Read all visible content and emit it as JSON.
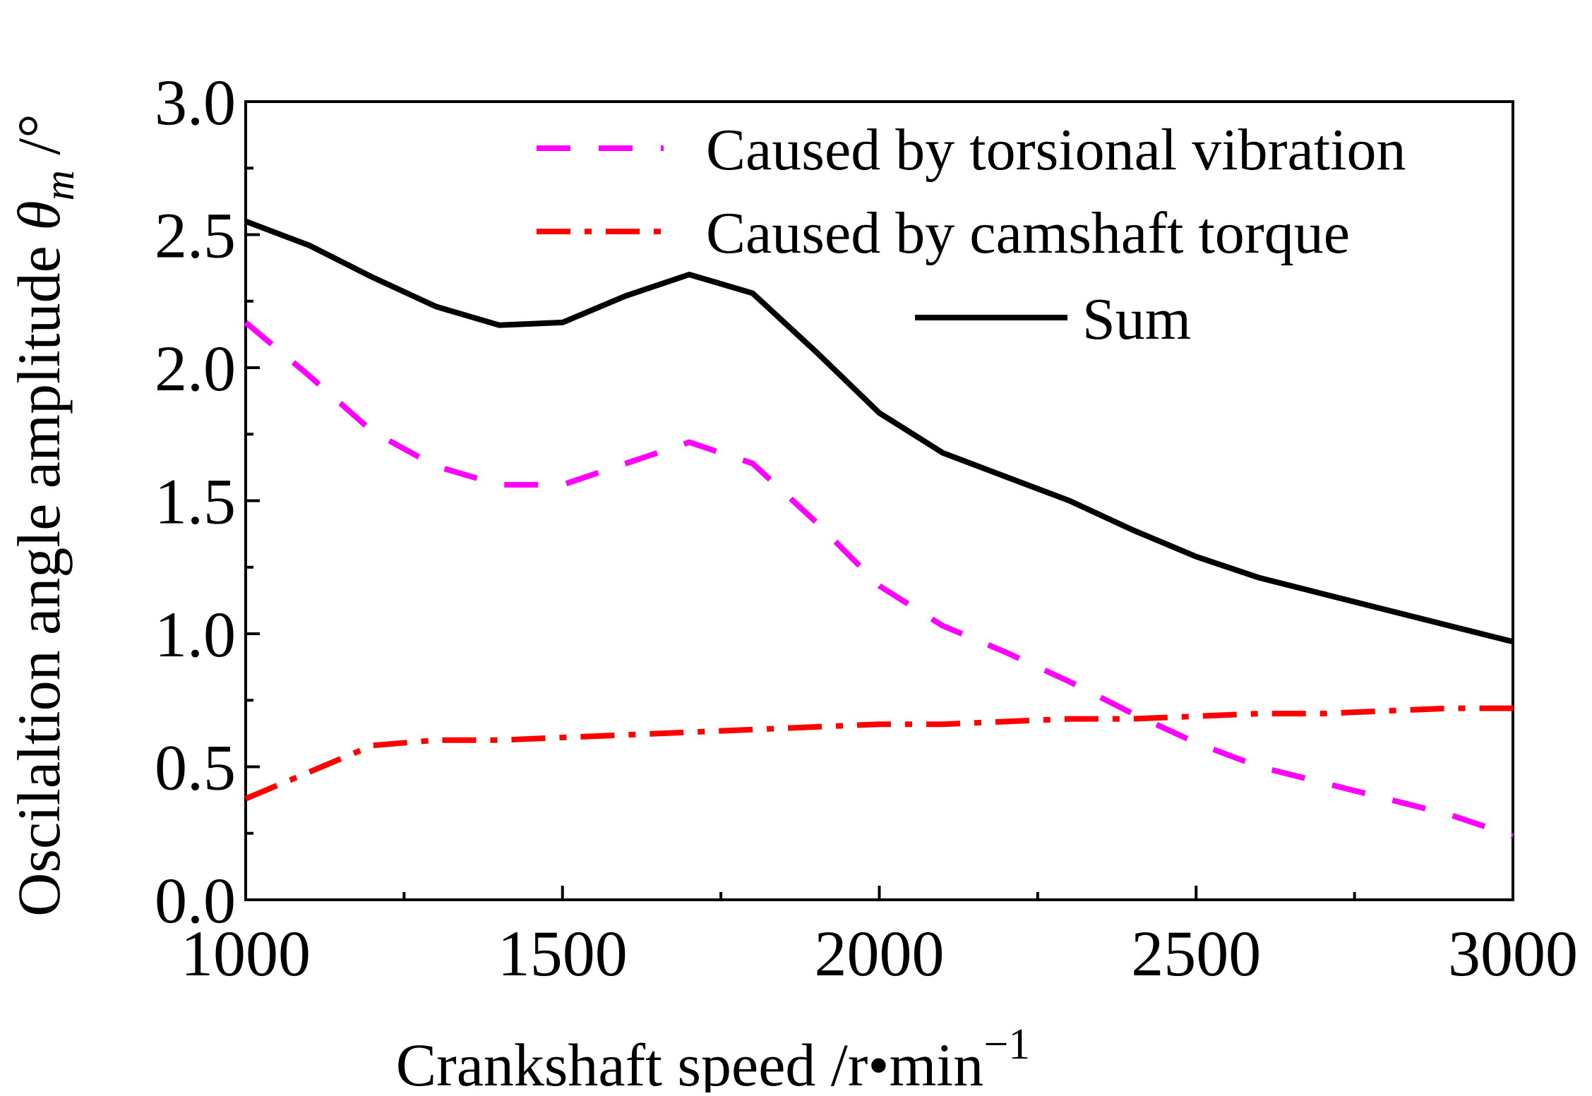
{
  "chart_data": {
    "type": "line",
    "title": "",
    "xlabel": "Crankshaft speed  /r•min",
    "xlabel_superscript": "−1",
    "ylabel": "Oscilaltion angle amplitude",
    "ylabel_symbol": "θ",
    "ylabel_subscript": "m",
    "ylabel_unit": "/°",
    "xlim": [
      1000,
      3000
    ],
    "ylim": [
      0.0,
      3.0
    ],
    "x_major_ticks": [
      1000,
      1500,
      2000,
      2500,
      3000
    ],
    "x_tick_labels": [
      "1000",
      "1500",
      "2000",
      "2500",
      "3000"
    ],
    "x_minor_step": 250,
    "y_major_ticks": [
      0.0,
      0.5,
      1.0,
      1.5,
      2.0,
      2.5,
      3.0
    ],
    "y_tick_labels": [
      "0.0",
      "0.5",
      "1.0",
      "1.5",
      "2.0",
      "2.5",
      "3.0"
    ],
    "y_minor_step": 0.25,
    "grid": false,
    "legend_position": "top-right",
    "x": [
      1000,
      1100,
      1200,
      1300,
      1400,
      1500,
      1600,
      1700,
      1800,
      1900,
      2000,
      2100,
      2200,
      2300,
      2400,
      2500,
      2600,
      2700,
      2800,
      2900,
      3000
    ],
    "series": [
      {
        "name": "Caused by torsional vibration",
        "color": "#ff00ff",
        "style": "dashed",
        "values": [
          2.17,
          1.97,
          1.76,
          1.63,
          1.56,
          1.56,
          1.64,
          1.72,
          1.64,
          1.42,
          1.18,
          1.03,
          0.93,
          0.82,
          0.7,
          0.59,
          0.5,
          0.44,
          0.38,
          0.32,
          0.24
        ]
      },
      {
        "name": "Caused by camshaft torque",
        "color": "#ff0000",
        "style": "dash-dot",
        "values": [
          0.38,
          0.48,
          0.58,
          0.6,
          0.6,
          0.61,
          0.62,
          0.63,
          0.64,
          0.65,
          0.66,
          0.66,
          0.67,
          0.68,
          0.68,
          0.69,
          0.7,
          0.7,
          0.71,
          0.72,
          0.72
        ]
      },
      {
        "name": "Sum",
        "color": "#000000",
        "style": "solid",
        "values": [
          2.55,
          2.46,
          2.34,
          2.23,
          2.16,
          2.17,
          2.27,
          2.35,
          2.28,
          2.06,
          1.83,
          1.68,
          1.59,
          1.5,
          1.39,
          1.29,
          1.21,
          1.15,
          1.09,
          1.03,
          0.97
        ]
      }
    ]
  }
}
